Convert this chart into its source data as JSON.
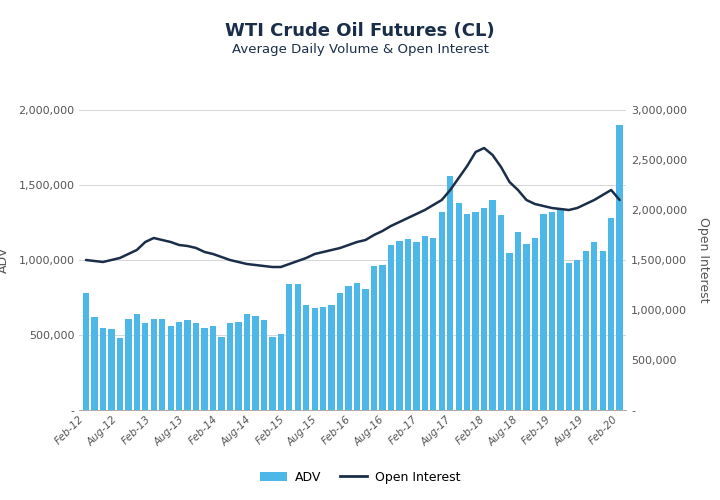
{
  "title": "WTI Crude Oil Futures (CL)",
  "subtitle": "Average Daily Volume & Open Interest",
  "title_color": "#1a2e4a",
  "subtitle_color": "#555555",
  "bar_color": "#4db8e8",
  "line_color": "#1a2e4a",
  "background_color": "#ffffff",
  "ylabel_left": "ADV",
  "ylabel_right": "Open Interest",
  "labels": [
    "Feb-12",
    "Aug-12",
    "Feb-13",
    "Aug-13",
    "Feb-14",
    "Aug-14",
    "Feb-15",
    "Aug-15",
    "Feb-16",
    "Aug-16",
    "Feb-17",
    "Aug-17",
    "Feb-18",
    "Aug-18",
    "Feb-19",
    "Aug-19",
    "Feb-20"
  ],
  "adv": [
    780000,
    620000,
    550000,
    540000,
    480000,
    610000,
    640000,
    580000,
    610000,
    610000,
    560000,
    590000,
    600000,
    580000,
    550000,
    560000,
    490000,
    580000,
    590000,
    640000,
    630000,
    600000,
    490000,
    510000,
    840000,
    840000,
    700000,
    680000,
    690000,
    700000,
    780000,
    830000,
    850000,
    810000,
    960000,
    970000,
    1100000,
    1130000,
    1140000,
    1120000,
    1160000,
    1150000,
    1320000,
    1560000,
    1380000,
    1310000,
    1320000,
    1350000,
    1400000,
    1300000,
    1050000,
    1190000,
    1110000,
    1150000,
    1310000,
    1320000,
    1350000,
    980000,
    1000000,
    1060000,
    1120000,
    1060000,
    1280000,
    1900000
  ],
  "open_interest": [
    1500000,
    1490000,
    1480000,
    1500000,
    1520000,
    1560000,
    1600000,
    1680000,
    1720000,
    1700000,
    1680000,
    1650000,
    1640000,
    1620000,
    1580000,
    1560000,
    1530000,
    1500000,
    1480000,
    1460000,
    1450000,
    1440000,
    1430000,
    1430000,
    1460000,
    1490000,
    1520000,
    1560000,
    1580000,
    1600000,
    1620000,
    1650000,
    1680000,
    1700000,
    1750000,
    1790000,
    1840000,
    1880000,
    1920000,
    1960000,
    2000000,
    2050000,
    2100000,
    2200000,
    2320000,
    2440000,
    2580000,
    2620000,
    2550000,
    2430000,
    2280000,
    2200000,
    2100000,
    2060000,
    2040000,
    2020000,
    2010000,
    2000000,
    2020000,
    2060000,
    2100000,
    2150000,
    2200000,
    2100000
  ],
  "ylim_left": [
    0,
    2000000
  ],
  "ylim_right": [
    0,
    3000000
  ],
  "yticks_left": [
    0,
    500000,
    1000000,
    1500000,
    2000000
  ],
  "yticks_right": [
    0,
    500000,
    1000000,
    1500000,
    2000000,
    2500000,
    3000000
  ],
  "grid_color": "#d0d0d0",
  "legend_adv": "ADV",
  "legend_oi": "Open Interest"
}
